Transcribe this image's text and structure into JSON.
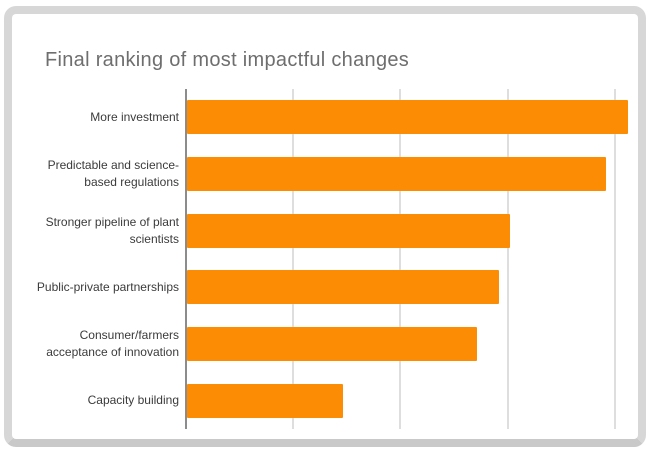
{
  "card": {
    "title": "Final ranking of most impactful changes"
  },
  "colors": {
    "bar": "#fb8c03",
    "title_text": "#6e6e6e",
    "label_text": "#3b3b3b",
    "axis_line": "#8c8c8c",
    "gridline": "#dedede",
    "card_border": "#d7d7d7",
    "background": "#ffffff"
  },
  "chart_data": {
    "type": "bar",
    "orientation": "horizontal",
    "title": "Final ranking of most impactful changes",
    "categories": [
      "More investment",
      "Predictable and science-based regulations",
      "Stronger pipeline of plant scientists",
      "Public-private partnerships",
      "Consumer/farmers acceptance of innovation",
      "Capacity building"
    ],
    "values": [
      4.1,
      3.9,
      3.0,
      2.9,
      2.7,
      1.45
    ],
    "xlabel": "",
    "ylabel": "",
    "xlim": [
      0,
      4.4
    ],
    "gridlines_x": [
      1,
      2,
      3,
      4
    ],
    "grid": true,
    "legend": false,
    "axis_tick_labels_visible": false
  }
}
